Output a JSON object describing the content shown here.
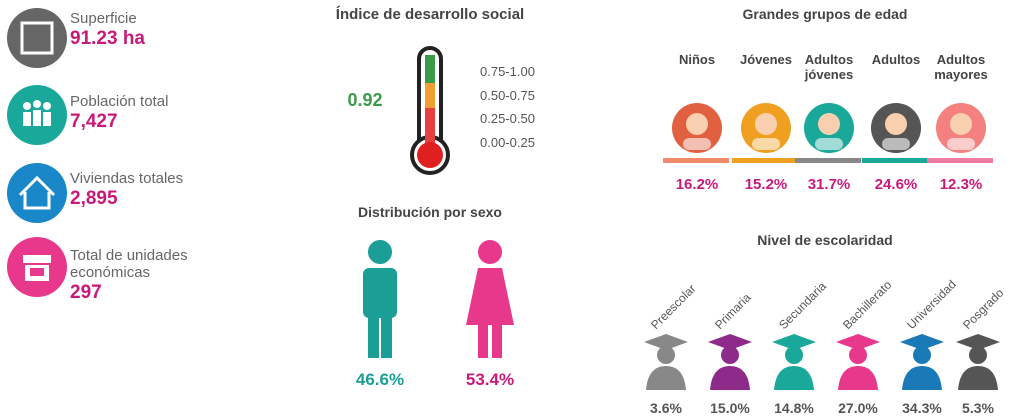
{
  "stats": [
    {
      "label": "Superficie",
      "value": "91.23 ha"
    },
    {
      "label": "Población total",
      "value": "7,427"
    },
    {
      "label": "Viviendas totales",
      "value": "2,895"
    },
    {
      "label": "Total de unidades económicas",
      "value": "297"
    }
  ],
  "indice": {
    "title": "Índice de desarrollo social",
    "value": "0.92",
    "ranges": [
      "0.75-1.00",
      "0.50-0.75",
      "0.25-0.50",
      "0.00-0.25"
    ]
  },
  "sexo": {
    "title": "Distribución por sexo",
    "hombres": "46.6%",
    "mujeres": "53.4%"
  },
  "edad": {
    "title": "Grandes grupos de edad",
    "groups": [
      {
        "name": "Niños",
        "value": "16.2%"
      },
      {
        "name": "Jóvenes",
        "value": "15.2%"
      },
      {
        "name": "Adultos jóvenes",
        "value": "31.7%"
      },
      {
        "name": "Adultos",
        "value": "24.6%"
      },
      {
        "name": "Adultos mayores",
        "value": "12.3%"
      }
    ]
  },
  "escolaridad": {
    "title": "Nivel de escolaridad",
    "levels": [
      {
        "name": "Preescolar",
        "value": "3.6%"
      },
      {
        "name": "Primaria",
        "value": "15.0%"
      },
      {
        "name": "Secundaria",
        "value": "14.8%"
      },
      {
        "name": "Bachillerato",
        "value": "27.0%"
      },
      {
        "name": "Universidad",
        "value": "34.3%"
      },
      {
        "name": "Posgrado",
        "value": "5.3%"
      }
    ]
  }
}
